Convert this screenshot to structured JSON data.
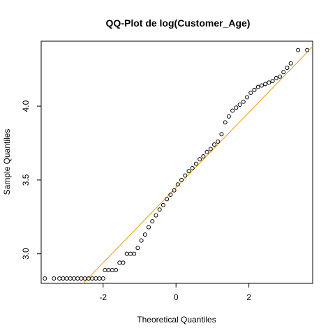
{
  "chart_data": {
    "type": "scatter",
    "title": "QQ-Plot de log(Customer_Age)",
    "xlabel": "Theoretical Quantiles",
    "ylabel": "Sample Quantiles",
    "xlim": [
      -3.7,
      3.75
    ],
    "ylim": [
      2.8,
      4.44
    ],
    "x_ticks": [
      -2,
      0,
      2
    ],
    "x_tick_labels": [
      "-2",
      "0",
      "2"
    ],
    "y_ticks": [
      3.0,
      3.5,
      4.0
    ],
    "y_tick_labels": [
      "3.0",
      "3.5",
      "4.0"
    ],
    "grid": false,
    "reference_line": {
      "slope": 0.2546,
      "intercept": 3.4485,
      "color": "#e69f00"
    },
    "series": [
      {
        "marker": "open-circle",
        "color": "#000000",
        "points": [
          [
            -3.6,
            2.833
          ],
          [
            -3.35,
            2.833
          ],
          [
            -3.2,
            2.833
          ],
          [
            -3.1,
            2.833
          ],
          [
            -3.0,
            2.833
          ],
          [
            -2.9,
            2.833
          ],
          [
            -2.8,
            2.833
          ],
          [
            -2.7,
            2.833
          ],
          [
            -2.6,
            2.833
          ],
          [
            -2.5,
            2.833
          ],
          [
            -2.4,
            2.833
          ],
          [
            -2.3,
            2.833
          ],
          [
            -2.2,
            2.833
          ],
          [
            -2.1,
            2.833
          ],
          [
            -2.0,
            2.833
          ],
          [
            -1.95,
            2.89
          ],
          [
            -1.85,
            2.89
          ],
          [
            -1.75,
            2.89
          ],
          [
            -1.65,
            2.89
          ],
          [
            -1.55,
            2.94
          ],
          [
            -1.45,
            2.94
          ],
          [
            -1.35,
            3.0
          ],
          [
            -1.25,
            3.0
          ],
          [
            -1.15,
            3.0
          ],
          [
            -1.05,
            3.04
          ],
          [
            -0.95,
            3.09
          ],
          [
            -0.85,
            3.13
          ],
          [
            -0.75,
            3.18
          ],
          [
            -0.65,
            3.22
          ],
          [
            -0.55,
            3.26
          ],
          [
            -0.45,
            3.3
          ],
          [
            -0.35,
            3.33
          ],
          [
            -0.25,
            3.37
          ],
          [
            -0.15,
            3.4
          ],
          [
            -0.05,
            3.43
          ],
          [
            0.05,
            3.47
          ],
          [
            0.15,
            3.5
          ],
          [
            0.25,
            3.53
          ],
          [
            0.35,
            3.56
          ],
          [
            0.45,
            3.58
          ],
          [
            0.55,
            3.61
          ],
          [
            0.65,
            3.64
          ],
          [
            0.75,
            3.66
          ],
          [
            0.85,
            3.69
          ],
          [
            0.95,
            3.71
          ],
          [
            1.05,
            3.74
          ],
          [
            1.15,
            3.76
          ],
          [
            1.25,
            3.81
          ],
          [
            1.35,
            3.89
          ],
          [
            1.45,
            3.93
          ],
          [
            1.55,
            3.97
          ],
          [
            1.65,
            3.99
          ],
          [
            1.75,
            4.01
          ],
          [
            1.85,
            4.03
          ],
          [
            1.95,
            4.06
          ],
          [
            2.05,
            4.09
          ],
          [
            2.15,
            4.11
          ],
          [
            2.25,
            4.13
          ],
          [
            2.35,
            4.14
          ],
          [
            2.45,
            4.15
          ],
          [
            2.55,
            4.16
          ],
          [
            2.65,
            4.17
          ],
          [
            2.75,
            4.19
          ],
          [
            2.85,
            4.2
          ],
          [
            2.95,
            4.23
          ],
          [
            3.05,
            4.26
          ],
          [
            3.15,
            4.29
          ],
          [
            3.35,
            4.38
          ],
          [
            3.6,
            4.38
          ]
        ]
      }
    ]
  }
}
